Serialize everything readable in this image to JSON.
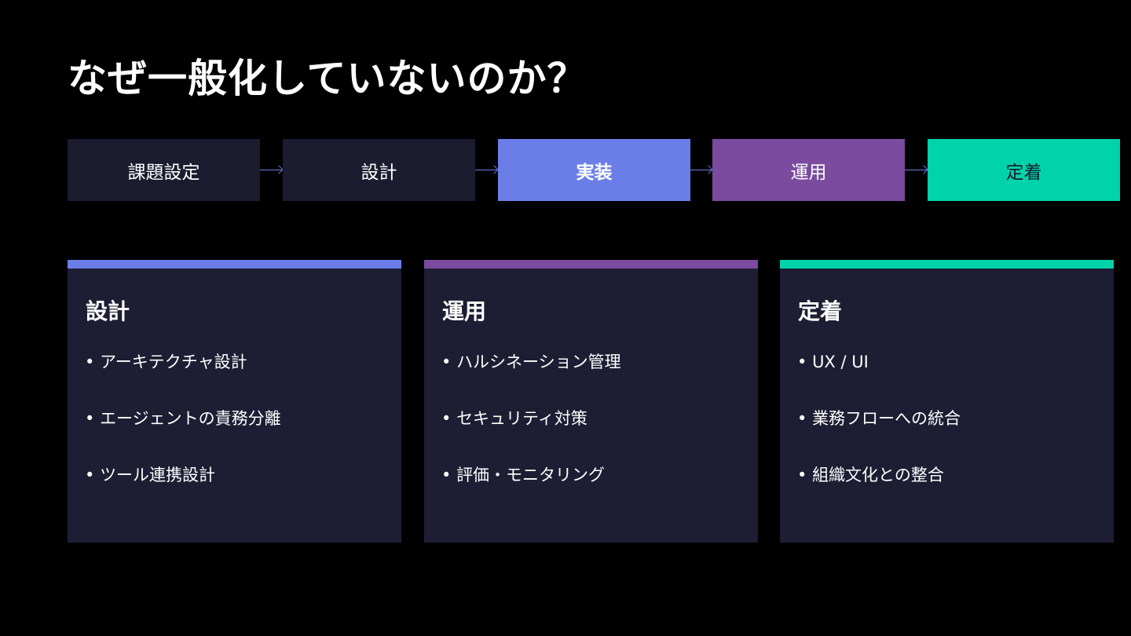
{
  "title": "なぜ一般化していないのか？",
  "colors": {
    "box": "#1c1c30",
    "blue": "#6b7ee8",
    "purple": "#7a4b9f",
    "teal": "#00d3aa",
    "arrow": "#6a7de6"
  },
  "steps": [
    {
      "label": "課題設定",
      "bg": "#1c1c30",
      "fg": "#ffffff",
      "bold": false
    },
    {
      "label": "設計",
      "bg": "#1c1c30",
      "fg": "#ffffff",
      "bold": false
    },
    {
      "label": "実装",
      "bg": "#6b7ee8",
      "fg": "#ffffff",
      "bold": true
    },
    {
      "label": "運用",
      "bg": "#7a4b9f",
      "fg": "#ffffff",
      "bold": false
    },
    {
      "label": "定着",
      "bg": "#00d3aa",
      "fg": "#1a1a2e",
      "bold": false
    }
  ],
  "cards": [
    {
      "title": "設計",
      "accent": "#6b7ee8",
      "items": [
        "アーキテクチャ設計",
        "エージェントの責務分離",
        "ツール連携設計"
      ]
    },
    {
      "title": "運用",
      "accent": "#7a4b9f",
      "items": [
        "ハルシネーション管理",
        "セキュリティ対策",
        "評価・モニタリング"
      ]
    },
    {
      "title": "定着",
      "accent": "#00d3aa",
      "items": [
        "UX / UI",
        "業務フローへの統合",
        "組織文化との整合"
      ]
    }
  ]
}
